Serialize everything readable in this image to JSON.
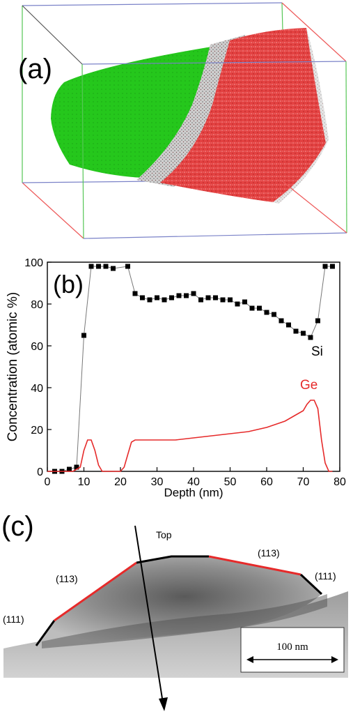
{
  "panel_a": {
    "label": "(a)",
    "colors": {
      "ge_atoms": "#22c41a",
      "si_atoms": "#e62a2a",
      "mixed_atoms": "#8a8a8a"
    }
  },
  "panel_b": {
    "label": "(b)",
    "chart_data": {
      "type": "line",
      "xlabel": "Depth (nm)",
      "ylabel": "Concentration (atomic %)",
      "xlim": [
        0,
        80
      ],
      "ylim": [
        0,
        100
      ],
      "xticks": [
        0,
        10,
        20,
        30,
        40,
        50,
        60,
        70,
        80
      ],
      "yticks": [
        0,
        20,
        40,
        60,
        80,
        100
      ],
      "series": [
        {
          "name": "Si",
          "color": "#000000",
          "marker": "square",
          "x": [
            2,
            4,
            6,
            8,
            10,
            12,
            14,
            16,
            18,
            22,
            24,
            26,
            28,
            30,
            32,
            34,
            36,
            38,
            40,
            42,
            44,
            46,
            48,
            50,
            52,
            54,
            56,
            58,
            60,
            62,
            64,
            66,
            68,
            70,
            72,
            74,
            76,
            78
          ],
          "y": [
            0,
            0,
            1,
            2,
            65,
            98,
            98,
            98,
            97,
            98,
            85,
            83,
            82,
            83,
            82,
            83,
            84,
            84,
            85,
            82,
            83,
            83,
            82,
            82,
            80,
            81,
            78,
            78,
            76,
            75,
            72,
            70,
            67,
            66,
            64,
            72,
            98,
            98
          ]
        },
        {
          "name": "Ge",
          "color": "#e62a2a",
          "x": [
            0,
            4,
            7,
            9,
            10,
            11,
            12,
            13,
            14,
            15,
            18,
            20,
            21,
            22,
            23,
            24,
            26,
            30,
            35,
            40,
            45,
            50,
            55,
            60,
            65,
            68,
            70,
            71,
            72,
            73,
            74,
            75,
            76,
            77,
            78
          ],
          "y": [
            0,
            0,
            0,
            2,
            10,
            15,
            15,
            10,
            3,
            0,
            0,
            0,
            2,
            8,
            14,
            15,
            15,
            15,
            15,
            16,
            17,
            18,
            19,
            21,
            24,
            27,
            29,
            32,
            34,
            34,
            30,
            15,
            4,
            0,
            0
          ]
        }
      ]
    }
  },
  "panel_c": {
    "label": "(c)",
    "facet_top": "Top",
    "facet_113_left": "(113)",
    "facet_113_right": "(113)",
    "facet_111_left": "(111)",
    "facet_111_right": "(111)",
    "scale_bar": "100 nm"
  }
}
